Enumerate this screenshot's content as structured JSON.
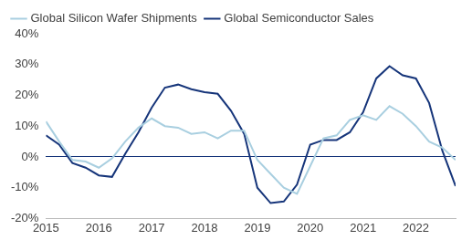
{
  "chart_data": {
    "type": "line",
    "x": [
      2015,
      2015.25,
      2015.5,
      2015.75,
      2016,
      2016.25,
      2016.5,
      2016.75,
      2017,
      2017.25,
      2017.5,
      2017.75,
      2018,
      2018.25,
      2018.5,
      2018.75,
      2019,
      2019.25,
      2019.5,
      2019.75,
      2020,
      2020.25,
      2020.5,
      2020.75,
      2021,
      2021.25,
      2021.5,
      2021.75,
      2022,
      2022.25,
      2022.5,
      2022.75
    ],
    "series": [
      {
        "name": "Global Silicon Wafer Shipments",
        "color": "#a9cfe0",
        "values": [
          11.5,
          5,
          -1,
          -1.5,
          -3.5,
          -0.5,
          5,
          9.5,
          12.5,
          10,
          9.5,
          7.5,
          8,
          6,
          8.5,
          8.5,
          -1,
          -5.5,
          -10,
          -12,
          -3,
          6,
          7,
          12,
          13.5,
          12,
          16.5,
          14,
          10,
          5,
          3,
          -1
        ]
      },
      {
        "name": "Global Semiconductor Sales",
        "color": "#16357a",
        "values": [
          7,
          4,
          -2,
          -3.5,
          -6,
          -6.5,
          1,
          8,
          16,
          22.5,
          23.5,
          22,
          21,
          20.5,
          15,
          7.5,
          -10,
          -15,
          -14.5,
          -9,
          4,
          5.5,
          5.5,
          8,
          14.5,
          25.5,
          29.5,
          26.5,
          25.5,
          17.5,
          2,
          -9.5
        ]
      }
    ],
    "xlim": [
      2015,
      2022.75
    ],
    "xticks": [
      2015,
      2016,
      2017,
      2018,
      2019,
      2020,
      2021,
      2022
    ],
    "ylim": [
      -20,
      40
    ],
    "yticks": [
      {
        "value": -20,
        "label": "-20%"
      },
      {
        "value": -10,
        "label": "-10%"
      },
      {
        "value": 0,
        "label": "0%"
      },
      {
        "value": 10,
        "label": "10%"
      },
      {
        "value": 20,
        "label": "20%"
      },
      {
        "value": 30,
        "label": "30%"
      },
      {
        "value": 40,
        "label": "40%"
      }
    ],
    "grid": false,
    "legend": "upper left"
  }
}
